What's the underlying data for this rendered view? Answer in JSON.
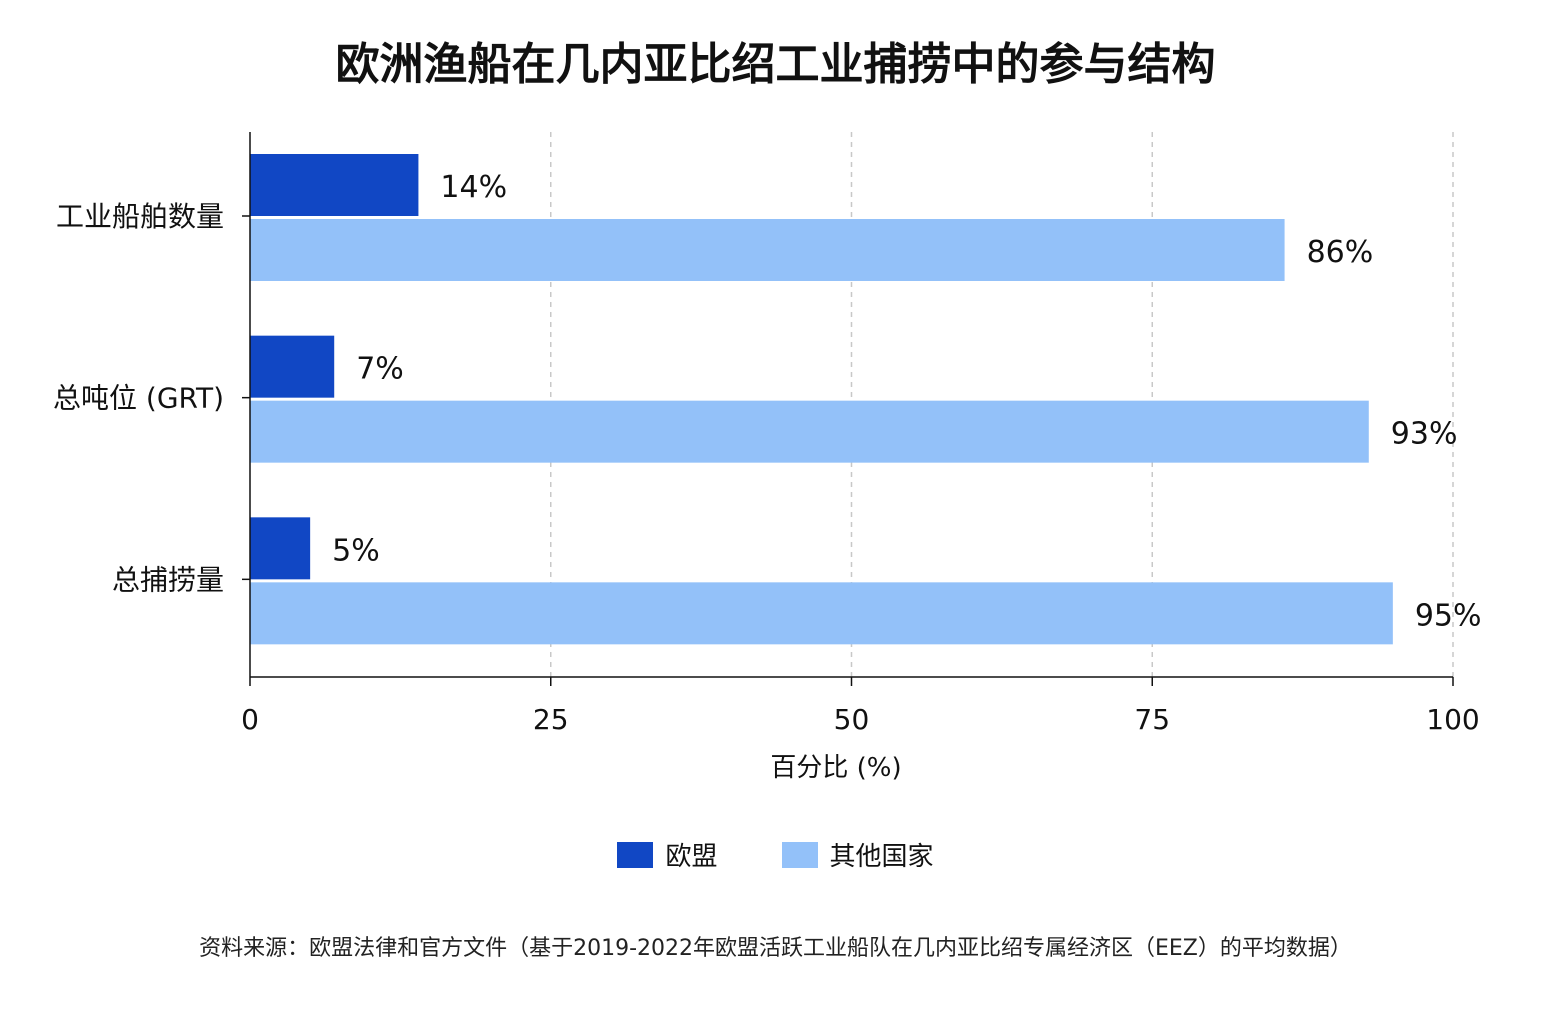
{
  "chart_data": {
    "type": "bar",
    "orientation": "horizontal",
    "title": "欧洲渔船在几内亚比绍工业捕捞中的参与结构",
    "categories": [
      "工业船舶数量",
      "总吨位 (GRT)",
      "总捕捞量"
    ],
    "series": [
      {
        "name": "欧盟",
        "color": "#1147c4",
        "values": [
          14,
          7,
          5
        ],
        "labels": [
          "14%",
          "7%",
          "5%"
        ]
      },
      {
        "name": "其他国家",
        "color": "#93c1f9",
        "values": [
          86,
          93,
          95
        ],
        "labels": [
          "86%",
          "93%",
          "95%"
        ]
      }
    ],
    "xlabel": "百分比 (%)",
    "xlim": [
      0,
      100
    ],
    "xticks": [
      0,
      25,
      50,
      75,
      100
    ],
    "grid": "vertical dashed",
    "legend_position": "bottom"
  },
  "source_note": "资料来源：欧盟法律和官方文件（基于2019-2022年欧盟活跃工业船队在几内亚比绍专属经济区（EEZ）的平均数据）"
}
